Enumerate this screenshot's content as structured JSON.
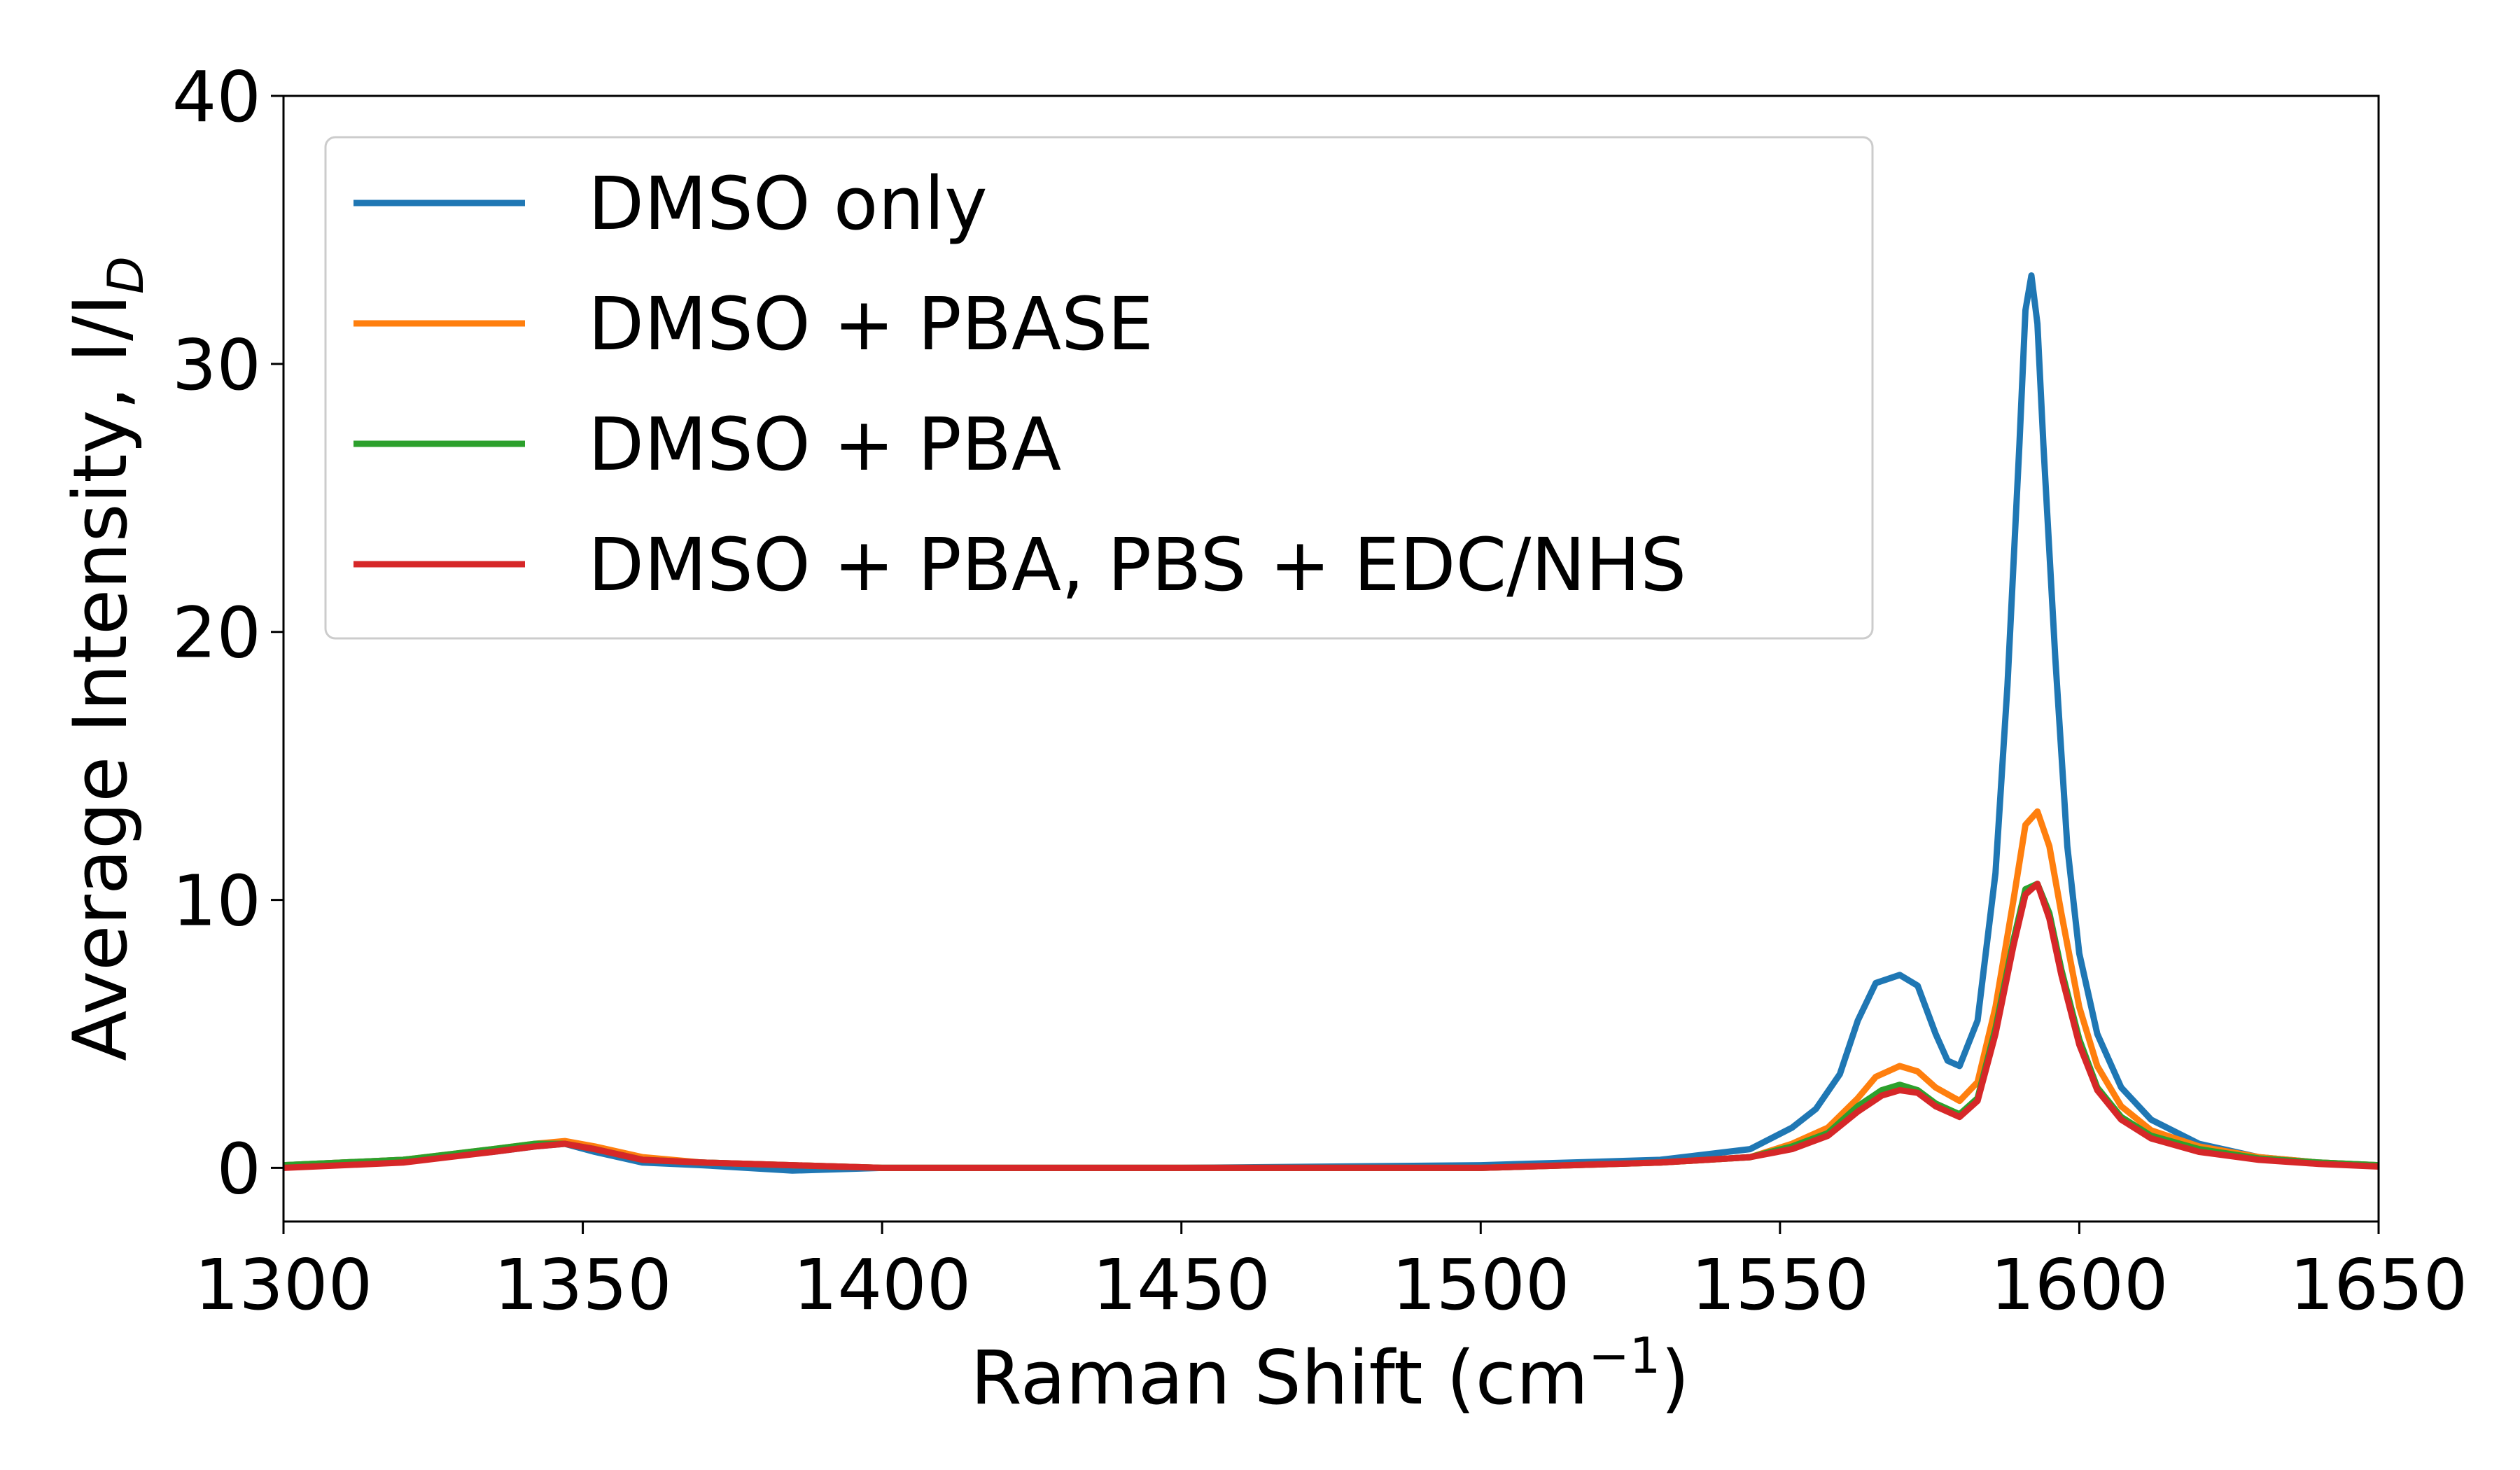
{
  "chart_data": {
    "type": "line",
    "title": "",
    "xlabel": "Raman Shift (cm",
    "xlabel_sup": "−1",
    "xlabel_close": ")",
    "ylabel": "Average Intensity, I/I",
    "ylabel_sub": "D",
    "xlim": [
      1300,
      1650
    ],
    "ylim": [
      -2,
      40
    ],
    "xticks": [
      "1300",
      "1350",
      "1400",
      "1450",
      "1500",
      "1550",
      "1600",
      "1650"
    ],
    "yticks": [
      "0",
      "10",
      "20",
      "30",
      "40"
    ],
    "grid": false,
    "legend_position": "top-left",
    "series": [
      {
        "name": "DMSO only",
        "color": "#1f77b4",
        "x": [
          1300,
          1320,
          1335,
          1342,
          1347,
          1352,
          1360,
          1370,
          1385,
          1400,
          1450,
          1500,
          1530,
          1545,
          1552,
          1556,
          1560,
          1563,
          1566,
          1570,
          1573,
          1576,
          1578,
          1580,
          1583,
          1586,
          1588,
          1590,
          1591,
          1592,
          1593,
          1594,
          1596,
          1598,
          1600,
          1603,
          1607,
          1612,
          1620,
          1630,
          1640,
          1650
        ],
        "y": [
          0.1,
          0.3,
          0.6,
          0.8,
          0.9,
          0.6,
          0.2,
          0.1,
          -0.1,
          0.0,
          0.0,
          0.1,
          0.3,
          0.7,
          1.5,
          2.2,
          3.5,
          5.5,
          6.9,
          7.2,
          6.8,
          5.0,
          4.0,
          3.8,
          5.5,
          11.0,
          18.0,
          27.0,
          32.0,
          33.3,
          31.5,
          27.0,
          19.0,
          12.0,
          8.0,
          5.0,
          3.0,
          1.8,
          0.9,
          0.4,
          0.2,
          0.1
        ]
      },
      {
        "name": "DMSO + PBASE",
        "color": "#ff7f0e",
        "x": [
          1300,
          1320,
          1335,
          1342,
          1347,
          1352,
          1360,
          1370,
          1385,
          1400,
          1450,
          1500,
          1530,
          1545,
          1552,
          1558,
          1563,
          1566,
          1570,
          1573,
          1576,
          1580,
          1583,
          1586,
          1589,
          1591,
          1593,
          1595,
          1597,
          1600,
          1603,
          1607,
          1612,
          1620,
          1630,
          1640,
          1650
        ],
        "y": [
          0.1,
          0.3,
          0.7,
          0.9,
          1.0,
          0.8,
          0.4,
          0.2,
          0.1,
          0.0,
          0.0,
          0.0,
          0.2,
          0.4,
          0.9,
          1.5,
          2.6,
          3.4,
          3.8,
          3.6,
          3.0,
          2.5,
          3.2,
          6.0,
          10.0,
          12.8,
          13.3,
          12.0,
          9.5,
          6.0,
          3.8,
          2.3,
          1.4,
          0.8,
          0.4,
          0.2,
          0.1
        ]
      },
      {
        "name": "DMSO + PBA",
        "color": "#2ca02c",
        "x": [
          1300,
          1320,
          1335,
          1342,
          1347,
          1352,
          1360,
          1370,
          1385,
          1400,
          1450,
          1500,
          1530,
          1545,
          1552,
          1558,
          1563,
          1567,
          1570,
          1573,
          1576,
          1580,
          1583,
          1586,
          1589,
          1591,
          1593,
          1595,
          1597,
          1600,
          1603,
          1607,
          1612,
          1620,
          1630,
          1640,
          1650
        ],
        "y": [
          0.1,
          0.3,
          0.7,
          0.9,
          0.9,
          0.7,
          0.3,
          0.2,
          0.1,
          0.0,
          0.0,
          0.0,
          0.2,
          0.4,
          0.8,
          1.3,
          2.3,
          2.9,
          3.1,
          2.9,
          2.4,
          2.0,
          2.6,
          5.2,
          8.5,
          10.4,
          10.6,
          9.5,
          7.4,
          4.8,
          3.0,
          1.9,
          1.2,
          0.7,
          0.35,
          0.2,
          0.1
        ]
      },
      {
        "name": "DMSO + PBA, PBS + EDC/NHS",
        "color": "#d62728",
        "x": [
          1300,
          1320,
          1335,
          1342,
          1347,
          1352,
          1360,
          1370,
          1385,
          1400,
          1450,
          1500,
          1530,
          1545,
          1552,
          1558,
          1563,
          1567,
          1570,
          1573,
          1576,
          1580,
          1583,
          1586,
          1589,
          1591,
          1593,
          1595,
          1597,
          1600,
          1603,
          1607,
          1612,
          1620,
          1630,
          1640,
          1650
        ],
        "y": [
          0.0,
          0.2,
          0.6,
          0.8,
          0.9,
          0.7,
          0.3,
          0.2,
          0.1,
          0.0,
          0.0,
          0.0,
          0.2,
          0.4,
          0.7,
          1.2,
          2.1,
          2.7,
          2.9,
          2.8,
          2.3,
          1.9,
          2.5,
          5.0,
          8.3,
          10.2,
          10.6,
          9.3,
          7.2,
          4.6,
          2.9,
          1.8,
          1.1,
          0.6,
          0.3,
          0.15,
          0.05
        ]
      }
    ]
  }
}
